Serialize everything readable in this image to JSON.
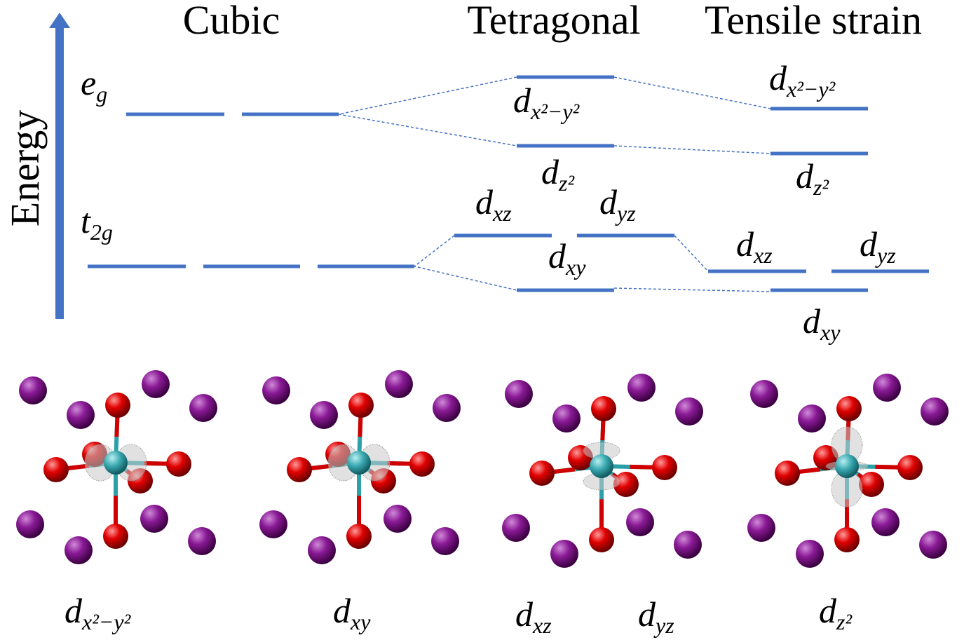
{
  "columns": [
    "Cubic",
    "Tetragonal",
    "Tensile strain"
  ],
  "axis_label": "Energy",
  "groups": [
    {
      "base": "e",
      "sub": "g"
    },
    {
      "base": "t",
      "sub": "2g"
    }
  ],
  "tetragonal": [
    {
      "base": "d",
      "sub": "x²−y²"
    },
    {
      "base": "d",
      "sub": "z²"
    },
    {
      "base": "d",
      "sub": "xz"
    },
    {
      "base": "d",
      "sub": "yz"
    },
    {
      "base": "d",
      "sub": "xy"
    }
  ],
  "tensile": [
    {
      "base": "d",
      "sub": "x²−y²"
    },
    {
      "base": "d",
      "sub": "z²"
    },
    {
      "base": "d",
      "sub": "xz"
    },
    {
      "base": "d",
      "sub": "yz"
    },
    {
      "base": "d",
      "sub": "xy"
    }
  ],
  "orbitals": [
    {
      "base": "d",
      "sub": "x²−y²"
    },
    {
      "base": "d",
      "sub": "xy"
    },
    {
      "base": "d",
      "sub": "xz"
    },
    {
      "base": "d",
      "sub": "yz"
    },
    {
      "base": "d",
      "sub": "z²"
    }
  ]
}
